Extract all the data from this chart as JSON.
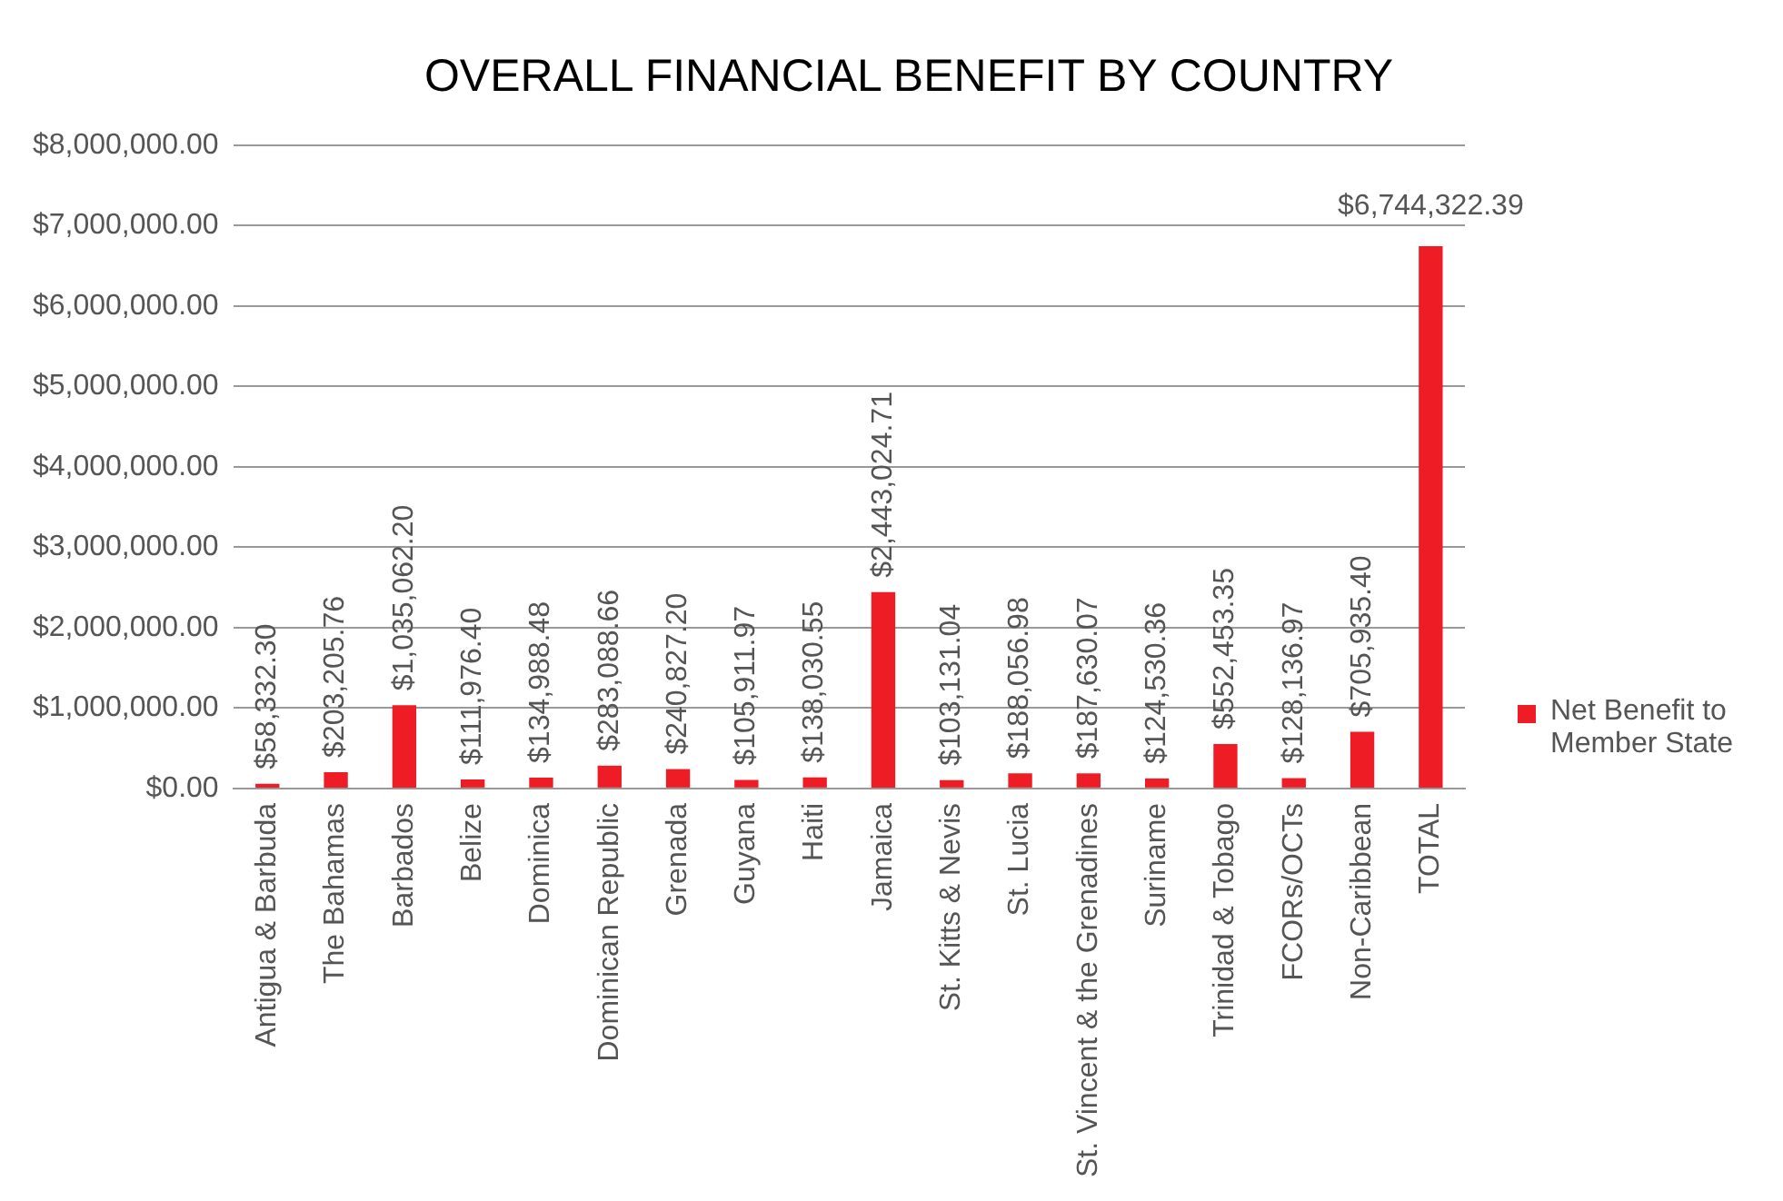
{
  "chart_data": {
    "type": "bar",
    "title": "OVERALL FINANCIAL BENEFIT BY COUNTRY",
    "categories": [
      "Antigua & Barbuda",
      "The Bahamas",
      "Barbados",
      "Belize",
      "Dominica",
      "Dominican Republic",
      "Grenada",
      "Guyana",
      "Haiti",
      "Jamaica",
      "St. Kitts & Nevis",
      "St. Lucia",
      "St. Vincent & the Grenadines",
      "Suriname",
      "Trinidad & Tobago",
      "FCORs/OCTs",
      "Non-Caribbean",
      "TOTAL"
    ],
    "series": [
      {
        "name": "Net Benefit to Member State",
        "color": "#ee1c25",
        "values": [
          58332.3,
          203205.76,
          1035062.2,
          111976.4,
          134988.48,
          283088.66,
          240827.2,
          105911.97,
          138030.55,
          2443024.71,
          103131.04,
          188056.98,
          187630.07,
          124530.36,
          552453.35,
          128136.97,
          705935.4,
          6744322.39
        ],
        "value_labels": [
          "$58,332.30",
          "$203,205.76",
          "$1,035,062.20",
          "$111,976.40",
          "$134,988.48",
          "$283,088.66",
          "$240,827.20",
          "$105,911.97",
          "$138,030.55",
          "$2,443,024.71",
          "$103,131.04",
          "$188,056.98",
          "$187,630.07",
          "$124,530.36",
          "$552,453.35",
          "$128,136.97",
          "$705,935.40",
          "$6,744,322.39"
        ]
      }
    ],
    "ylim": [
      0,
      8000000
    ],
    "yticks": [
      {
        "value": 0,
        "label": "$0.00"
      },
      {
        "value": 1000000,
        "label": "$1,000,000.00"
      },
      {
        "value": 2000000,
        "label": "$2,000,000.00"
      },
      {
        "value": 3000000,
        "label": "$3,000,000.00"
      },
      {
        "value": 4000000,
        "label": "$4,000,000.00"
      },
      {
        "value": 5000000,
        "label": "$5,000,000.00"
      },
      {
        "value": 6000000,
        "label": "$6,000,000.00"
      },
      {
        "value": 7000000,
        "label": "$7,000,000.00"
      },
      {
        "value": 8000000,
        "label": "$8,000,000.00"
      }
    ],
    "grid": "y",
    "legend": "right"
  }
}
